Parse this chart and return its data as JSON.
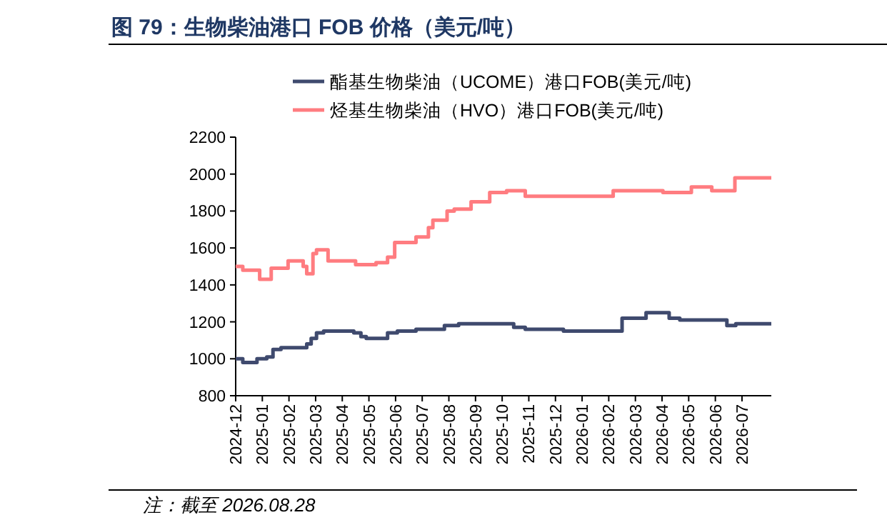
{
  "chart_data": {
    "type": "step",
    "title": "图 79：生物柴油港口 FOB 价格（美元/吨）",
    "annotations": [
      "注：截至 2026.08.28"
    ],
    "legend": "top",
    "line_style": "solid",
    "xlim": [
      "2024-12-01",
      "2026-08-04"
    ],
    "xticks": [
      "2024-12",
      "2025-01",
      "2025-02",
      "2025-03",
      "2025-04",
      "2025-05",
      "2025-06",
      "2025-07",
      "2025-08",
      "2025-09",
      "2025-10",
      "2025-11",
      "2025-12",
      "2026-01",
      "2026-02",
      "2026-03",
      "2026-04",
      "2026-05",
      "2026-06",
      "2026-07"
    ],
    "ylim": [
      800,
      2200
    ],
    "yticks": [
      800,
      1000,
      1200,
      1400,
      1600,
      1800,
      2000,
      2200
    ],
    "series": [
      {
        "name": "酯基生物柴油（UCOME）港口FOB(美元/吨)",
        "color": "#3f4a6e",
        "x": [
          "2024-12-01",
          "2024-12-09",
          "2024-12-25",
          "2025-01-06",
          "2025-01-13",
          "2025-01-22",
          "2025-02-21",
          "2025-02-26",
          "2025-03-02",
          "2025-03-10",
          "2025-04-14",
          "2025-04-22",
          "2025-04-28",
          "2025-05-22",
          "2025-06-03",
          "2025-06-24",
          "2025-07-26",
          "2025-08-12",
          "2025-10-14",
          "2025-10-27",
          "2025-12-10",
          "2026-02-16",
          "2026-03-13",
          "2026-04-09",
          "2026-04-21",
          "2026-06-14",
          "2026-06-24",
          "2026-08-04"
        ],
        "values": [
          1000,
          980,
          1000,
          1010,
          1050,
          1060,
          1080,
          1110,
          1140,
          1150,
          1140,
          1120,
          1110,
          1140,
          1150,
          1160,
          1180,
          1190,
          1170,
          1160,
          1150,
          1220,
          1250,
          1220,
          1210,
          1180,
          1190,
          1190
        ]
      },
      {
        "name": "烃基生物柴油（HVO）港口FOB(美元/吨)",
        "color": "#ff7c80",
        "x": [
          "2024-12-01",
          "2024-12-09",
          "2024-12-28",
          "2025-01-11",
          "2025-01-30",
          "2025-02-17",
          "2025-02-21",
          "2025-02-28",
          "2025-03-02",
          "2025-03-15",
          "2025-04-16",
          "2025-05-09",
          "2025-05-22",
          "2025-05-30",
          "2025-06-24",
          "2025-07-08",
          "2025-07-13",
          "2025-07-29",
          "2025-08-07",
          "2025-08-26",
          "2025-09-17",
          "2025-10-06",
          "2025-10-27",
          "2026-02-06",
          "2026-04-02",
          "2026-05-04",
          "2026-05-27",
          "2026-06-23",
          "2026-08-04"
        ],
        "values": [
          1500,
          1480,
          1430,
          1490,
          1530,
          1500,
          1460,
          1570,
          1590,
          1530,
          1510,
          1520,
          1550,
          1630,
          1660,
          1710,
          1750,
          1800,
          1810,
          1850,
          1900,
          1910,
          1880,
          1910,
          1900,
          1930,
          1910,
          1980,
          1980
        ]
      }
    ]
  }
}
